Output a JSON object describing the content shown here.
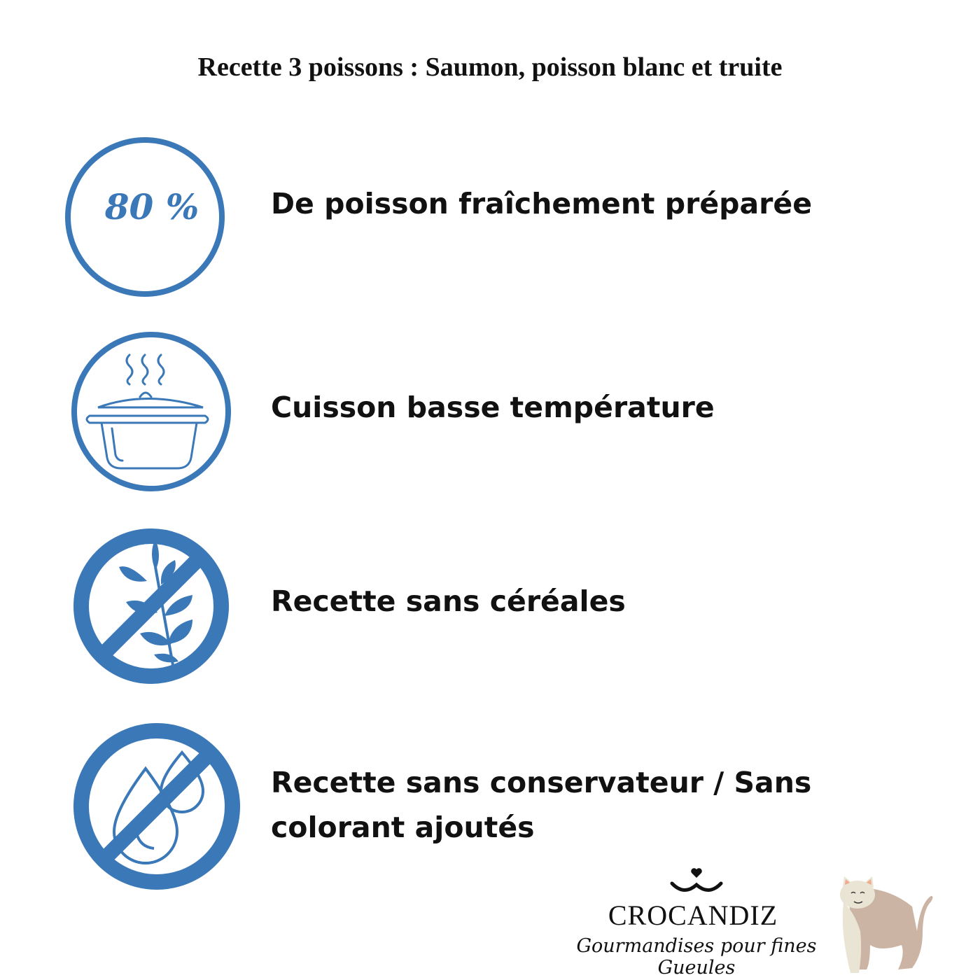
{
  "title": "Recette 3 poissons : Saumon, poisson blanc et truite",
  "accent_color": "#3b78b8",
  "features": [
    {
      "icon": "percent-badge-icon",
      "badge": "80 %",
      "label": "De poisson fraîchement préparée"
    },
    {
      "icon": "cooking-pot-icon",
      "label": "Cuisson basse température"
    },
    {
      "icon": "no-grain-icon",
      "label": "Recette sans céréales"
    },
    {
      "icon": "no-additives-drops-icon",
      "label": "Recette sans conservateur / Sans colorant ajoutés"
    }
  ],
  "logo": {
    "brand": "CROCANDIZ",
    "tagline": "Gourmandises pour fines Gueules",
    "icon": "cat-smile-heart-icon",
    "mascot": "cat-illustration"
  }
}
